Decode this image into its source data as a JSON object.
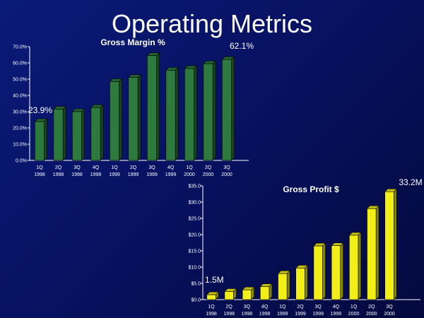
{
  "slide": {
    "title": "Operating Metrics"
  },
  "chart_data": [
    {
      "type": "bar",
      "title": "Gross Margin %",
      "categories": [
        [
          "1Q",
          "1998"
        ],
        [
          "2Q",
          "1998"
        ],
        [
          "3Q",
          "1998"
        ],
        [
          "4Q",
          "1998"
        ],
        [
          "1Q",
          "1999"
        ],
        [
          "2Q",
          "1999"
        ],
        [
          "3Q",
          "1999"
        ],
        [
          "4Q",
          "1999"
        ],
        [
          "1Q",
          "2000"
        ],
        [
          "2Q",
          "2000"
        ],
        [
          "3Q",
          "2000"
        ]
      ],
      "values": [
        23.9,
        31.5,
        30.0,
        32.5,
        48.5,
        51.0,
        64.5,
        55.5,
        56.5,
        59.5,
        62.1
      ],
      "ylim": [
        0,
        70
      ],
      "yticks": [
        "0.0%",
        "10.0%",
        "20.0%",
        "30.0%",
        "40.0%",
        "50.0%",
        "60.0%",
        "70.0%"
      ],
      "bar_color": "#2e7a3e",
      "annotations": [
        {
          "text": "23.9%",
          "index": 0
        },
        {
          "text": "62.1%",
          "index": 10
        }
      ]
    },
    {
      "type": "bar",
      "title": "Gross Profit $",
      "categories": [
        [
          "1Q",
          "1998"
        ],
        [
          "2Q",
          "1998"
        ],
        [
          "3Q",
          "1998"
        ],
        [
          "4Q",
          "1998"
        ],
        [
          "1Q",
          "1999"
        ],
        [
          "2Q",
          "1999"
        ],
        [
          "3Q",
          "1999"
        ],
        [
          "4Q",
          "1999"
        ],
        [
          "1Q",
          "2000"
        ],
        [
          "2Q",
          "2000"
        ],
        [
          "3Q",
          "2000"
        ]
      ],
      "values": [
        1.5,
        2.5,
        3.0,
        4.0,
        8.0,
        9.7,
        16.5,
        16.6,
        19.8,
        28.0,
        33.2
      ],
      "ylim": [
        0,
        35
      ],
      "yticks": [
        "$0.0",
        "$5.0",
        "$10.0",
        "$15.0",
        "$20.0",
        "$25.0",
        "$30.0",
        "$35.0"
      ],
      "bar_color": "#f2ee1a",
      "annotations": [
        {
          "text": "1.5M",
          "index": 0
        },
        {
          "text": "33.2M",
          "index": 10
        }
      ]
    }
  ]
}
